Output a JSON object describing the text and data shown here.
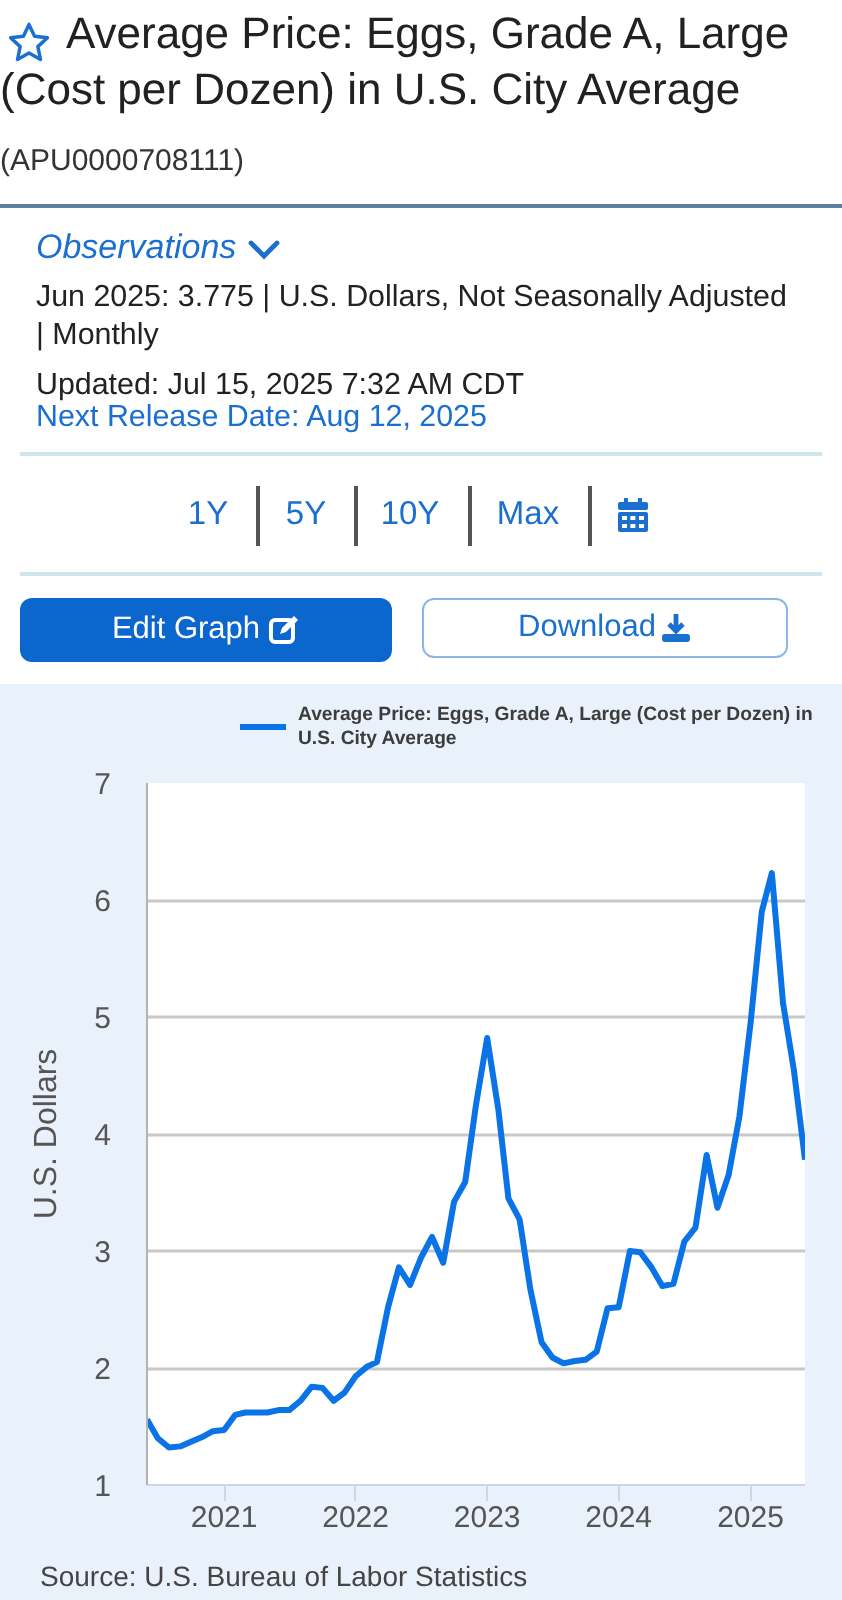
{
  "chart_data": {
    "type": "line",
    "title": "Average Price: Eggs, Grade A, Large (Cost per Dozen) in U.S. City Average",
    "subtitle": "(APU0000708111)",
    "ylabel": "U.S. Dollars",
    "x": [
      "2020-06",
      "2020-07",
      "2020-08",
      "2020-09",
      "2020-10",
      "2020-11",
      "2020-12",
      "2021-01",
      "2021-02",
      "2021-03",
      "2021-04",
      "2021-05",
      "2021-06",
      "2021-07",
      "2021-08",
      "2021-09",
      "2021-10",
      "2021-11",
      "2021-12",
      "2022-01",
      "2022-02",
      "2022-03",
      "2022-04",
      "2022-05",
      "2022-06",
      "2022-07",
      "2022-08",
      "2022-09",
      "2022-10",
      "2022-11",
      "2022-12",
      "2023-01",
      "2023-02",
      "2023-03",
      "2023-04",
      "2023-05",
      "2023-06",
      "2023-07",
      "2023-08",
      "2023-09",
      "2023-10",
      "2023-11",
      "2023-12",
      "2024-01",
      "2024-02",
      "2024-03",
      "2024-04",
      "2024-05",
      "2024-06",
      "2024-07",
      "2024-08",
      "2024-09",
      "2024-10",
      "2024-11",
      "2024-12",
      "2025-01",
      "2025-02",
      "2025-03",
      "2025-04",
      "2025-05",
      "2025-06"
    ],
    "series": [
      {
        "name": "Average Price: Eggs, Grade A, Large (Cost per Dozen) in U.S. City Average",
        "color": "#0a73e5",
        "values": [
          1.56,
          1.4,
          1.32,
          1.33,
          1.37,
          1.41,
          1.46,
          1.47,
          1.6,
          1.62,
          1.62,
          1.62,
          1.64,
          1.64,
          1.72,
          1.84,
          1.83,
          1.72,
          1.79,
          1.93,
          2.01,
          2.05,
          2.52,
          2.86,
          2.71,
          2.94,
          3.12,
          2.9,
          3.42,
          3.59,
          4.25,
          4.82,
          4.21,
          3.45,
          3.27,
          2.67,
          2.22,
          2.09,
          2.04,
          2.06,
          2.07,
          2.14,
          2.51,
          2.52,
          3.0,
          2.99,
          2.86,
          2.7,
          2.72,
          3.08,
          3.2,
          3.82,
          3.37,
          3.65,
          4.15,
          4.95,
          5.9,
          6.23,
          5.12,
          4.55,
          3.78
        ]
      }
    ],
    "xlim": [
      "2020-06",
      "2025-06"
    ],
    "xticks": [
      "2021",
      "2022",
      "2023",
      "2024",
      "2025"
    ],
    "ylim": [
      1,
      7
    ],
    "yticks": [
      1,
      2,
      3,
      4,
      5,
      6,
      7
    ],
    "grid": "y",
    "legend": "top",
    "annotations": [
      "Observations",
      "Jun 2025: 3.775 | U.S. Dollars, Not Seasonally Adjusted | Monthly",
      "Updated: Jul 15, 2025 7:32 AM CDT",
      "Next Release Date: Aug 12, 2025",
      "1Y",
      "5Y",
      "10Y",
      "Max",
      "Edit Graph",
      "Download",
      "Source: U.S. Bureau of Labor Statistics"
    ]
  }
}
